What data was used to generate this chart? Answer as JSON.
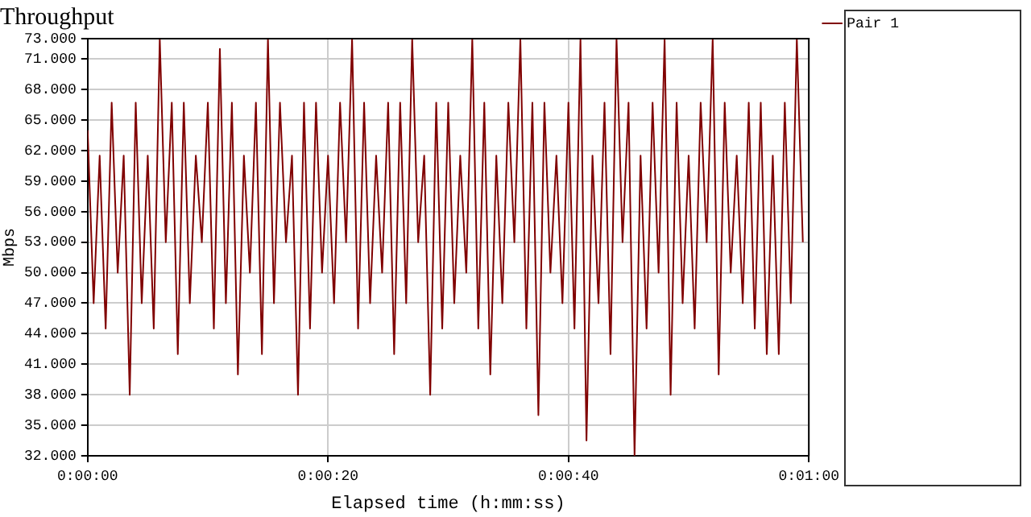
{
  "chart_data": {
    "type": "line",
    "title": "Throughput",
    "xlabel": "Elapsed time (h:mm:ss)",
    "ylabel": "Mbps",
    "x": [
      0,
      0.5,
      1,
      1.5,
      2,
      2.5,
      3,
      3.5,
      4,
      4.5,
      5,
      5.5,
      6,
      6.5,
      7,
      7.5,
      8,
      8.5,
      9,
      9.5,
      10,
      10.5,
      11,
      11.5,
      12,
      12.5,
      13,
      13.5,
      14,
      14.5,
      15,
      15.5,
      16,
      16.5,
      17,
      17.5,
      18,
      18.5,
      19,
      19.5,
      20,
      20.5,
      21,
      21.5,
      22,
      22.5,
      23,
      23.5,
      24,
      24.5,
      25,
      25.5,
      26,
      26.5,
      27,
      27.5,
      28,
      28.5,
      29,
      29.5,
      30,
      30.5,
      31,
      31.5,
      32,
      32.5,
      33,
      33.5,
      34,
      34.5,
      35,
      35.5,
      36,
      36.5,
      37,
      37.5,
      38,
      38.5,
      39,
      39.5,
      40,
      40.5,
      41,
      41.5,
      42,
      42.5,
      43,
      43.5,
      44,
      44.5,
      45,
      45.5,
      46,
      46.5,
      47,
      47.5,
      48,
      48.5,
      49,
      49.5,
      50,
      50.5,
      51,
      51.5,
      52,
      52.5,
      53,
      53.5,
      54,
      54.5,
      55,
      55.5,
      56,
      56.5,
      57,
      57.5,
      58,
      58.5,
      59,
      59.5
    ],
    "xlim": [
      0,
      60
    ],
    "xticks": [
      {
        "value": 0,
        "label": "0:00:00"
      },
      {
        "value": 20,
        "label": "0:00:20"
      },
      {
        "value": 40,
        "label": "0:00:40"
      },
      {
        "value": 60,
        "label": "0:01:00"
      }
    ],
    "ylim": [
      32,
      73
    ],
    "yticks": [
      {
        "value": 32,
        "label": "32.000"
      },
      {
        "value": 35,
        "label": "35.000"
      },
      {
        "value": 38,
        "label": "38.000"
      },
      {
        "value": 41,
        "label": "41.000"
      },
      {
        "value": 44,
        "label": "44.000"
      },
      {
        "value": 47,
        "label": "47.000"
      },
      {
        "value": 50,
        "label": "50.000"
      },
      {
        "value": 53,
        "label": "53.000"
      },
      {
        "value": 56,
        "label": "56.000"
      },
      {
        "value": 59,
        "label": "59.000"
      },
      {
        "value": 62,
        "label": "62.000"
      },
      {
        "value": 65,
        "label": "65.000"
      },
      {
        "value": 68,
        "label": "68.000"
      },
      {
        "value": 71,
        "label": "71.000"
      },
      {
        "value": 73,
        "label": "73.000"
      }
    ],
    "series": [
      {
        "name": "Pair 1",
        "color": "#800000",
        "values": [
          64,
          47,
          61.5,
          44.5,
          66.7,
          50,
          61.5,
          38,
          66.7,
          47,
          61.5,
          44.5,
          73,
          53,
          66.7,
          42,
          66.7,
          47,
          61.5,
          53,
          66.7,
          44.5,
          72,
          47,
          66.7,
          40,
          61.5,
          50,
          66.7,
          42,
          73,
          47,
          66.7,
          53,
          61.5,
          38,
          66.7,
          44.5,
          66.7,
          50,
          61.5,
          47,
          66.7,
          53,
          73,
          44.5,
          66.7,
          47,
          61.5,
          50,
          66.7,
          42,
          66.7,
          47,
          73,
          53,
          61.5,
          38,
          66.7,
          44.5,
          66.7,
          47,
          61.5,
          50,
          73,
          44.5,
          66.7,
          40,
          61.5,
          47,
          66.7,
          53,
          73,
          44.5,
          66.7,
          36,
          66.7,
          50,
          61.5,
          47,
          66.7,
          44.5,
          73,
          33.5,
          61.5,
          47,
          66.7,
          42,
          73,
          53,
          66.7,
          32,
          61.5,
          44.5,
          66.7,
          50,
          73,
          38,
          66.7,
          47,
          61.5,
          44.5,
          66.7,
          53,
          73,
          40,
          66.7,
          50,
          61.5,
          47,
          66.7,
          44.5,
          66.7,
          42,
          61.5,
          42,
          66.7,
          47,
          73,
          53
        ]
      }
    ],
    "grid": true,
    "legend": "right",
    "marker": "none"
  }
}
